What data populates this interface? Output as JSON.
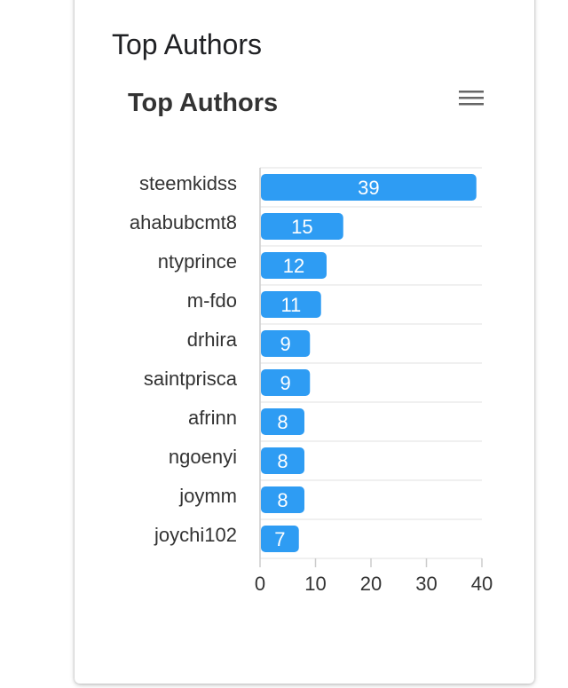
{
  "card": {
    "title": "Top Authors"
  },
  "menu": {
    "icon": "hamburger-menu-icon"
  },
  "colors": {
    "bar": "#2E9CF3",
    "grid": "#E6E6E6",
    "axis": "#CCCCCC",
    "text": "#333333"
  },
  "chart_data": {
    "type": "bar",
    "orientation": "horizontal",
    "title": "Top Authors",
    "categories": [
      "steemkidss",
      "ahabubcmt8",
      "ntyprince",
      "m-fdo",
      "drhira",
      "saintprisca",
      "afrinn",
      "ngoenyi",
      "joymm",
      "joychi102"
    ],
    "values": [
      39,
      15,
      12,
      11,
      9,
      9,
      8,
      8,
      8,
      7
    ],
    "data_labels": true,
    "xlim": [
      0,
      40
    ],
    "x_ticks": [
      0,
      10,
      20,
      30,
      40
    ],
    "xlabel": "",
    "ylabel": "",
    "grid": true,
    "legend": "none"
  }
}
